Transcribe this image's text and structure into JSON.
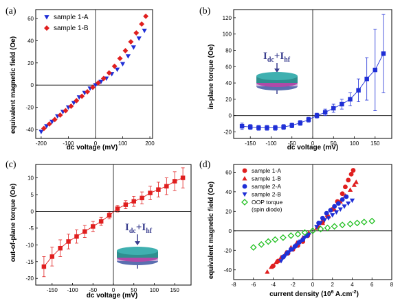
{
  "chart_data": [
    {
      "panel_label": "(a)",
      "type": "scatter",
      "xlabel": "dc voltage (mV)",
      "ylabel": "equivalent magnetic field (Oe)",
      "xlim": [
        -220,
        210
      ],
      "ylim": [
        -48,
        68
      ],
      "xticks": [
        -200,
        -100,
        0,
        100,
        200
      ],
      "yticks": [
        -40,
        -20,
        0,
        20,
        40,
        60
      ],
      "legend_position": "top-left",
      "series": [
        {
          "name": "sample 1-A",
          "color": "#1f2fd6",
          "marker": "triangle-down",
          "x": [
            -200,
            -180,
            -160,
            -140,
            -120,
            -100,
            -80,
            -60,
            -40,
            -20,
            0,
            20,
            40,
            60,
            80,
            100,
            120,
            140,
            160,
            180
          ],
          "y": [
            -42,
            -37,
            -33,
            -28,
            -24,
            -20,
            -16,
            -11,
            -7,
            -3,
            0,
            3,
            6,
            10,
            14,
            19,
            26,
            34,
            42,
            49
          ]
        },
        {
          "name": "sample 1-B",
          "color": "#e01f1f",
          "marker": "diamond",
          "x": [
            -190,
            -170,
            -150,
            -130,
            -110,
            -90,
            -70,
            -50,
            -30,
            -10,
            10,
            30,
            50,
            70,
            90,
            110,
            130,
            150,
            170,
            185
          ],
          "y": [
            -39,
            -35,
            -31,
            -27,
            -23,
            -19,
            -14,
            -10,
            -6,
            -2,
            2,
            6,
            11,
            17,
            24,
            31,
            39,
            47,
            55,
            62
          ]
        }
      ]
    },
    {
      "panel_label": "(b)",
      "type": "scatter",
      "xlabel": "dc voltage (mV)",
      "ylabel": "in-plane torque (Oe)",
      "xlim": [
        -190,
        190
      ],
      "ylim": [
        -28,
        130
      ],
      "xticks": [
        -150,
        -100,
        -50,
        0,
        50,
        100,
        150
      ],
      "yticks": [
        -20,
        0,
        20,
        40,
        60,
        80,
        100,
        120
      ],
      "inset_label": "I",
      "inset_sub1": "dc",
      "inset_plus": "+I",
      "inset_sub2": "hf",
      "series": [
        {
          "color": "#1f2fd6",
          "marker": "square",
          "x": [
            -170,
            -150,
            -130,
            -110,
            -90,
            -70,
            -50,
            -30,
            -10,
            10,
            30,
            50,
            70,
            90,
            110,
            130,
            150,
            170
          ],
          "y": [
            -13,
            -14,
            -15,
            -15,
            -15,
            -14,
            -12,
            -9,
            -5,
            0,
            4,
            9,
            14,
            20,
            31,
            45,
            56,
            76
          ],
          "err": [
            4,
            3,
            3,
            3,
            3,
            3,
            3,
            3,
            3,
            3,
            4,
            5,
            6,
            8,
            14,
            26,
            50,
            48
          ]
        }
      ]
    },
    {
      "panel_label": "(c)",
      "type": "scatter",
      "xlabel": "dc voltage (mV)",
      "ylabel": "out-of-plane torque (Oe)",
      "xlim": [
        -190,
        190
      ],
      "ylim": [
        -22,
        14
      ],
      "xticks": [
        -150,
        -100,
        -50,
        0,
        50,
        100,
        150
      ],
      "yticks": [
        -20,
        -15,
        -10,
        -5,
        0,
        5,
        10
      ],
      "inset_label": "I",
      "inset_sub1": "dc",
      "inset_plus": "+I",
      "inset_sub2": "hf",
      "series": [
        {
          "color": "#e01f1f",
          "marker": "square",
          "x": [
            -170,
            -150,
            -130,
            -110,
            -90,
            -70,
            -50,
            -30,
            -10,
            10,
            30,
            50,
            70,
            90,
            110,
            130,
            150,
            170
          ],
          "y": [
            -16.5,
            -13.5,
            -11,
            -9,
            -7.5,
            -6,
            -4.5,
            -3,
            -1.2,
            0.8,
            2,
            3,
            4,
            5.5,
            6.5,
            7.5,
            9,
            10
          ],
          "err": [
            3,
            2.8,
            2.5,
            2.2,
            2,
            1.8,
            1.5,
            1.2,
            1,
            1,
            1.2,
            1.5,
            1.8,
            2,
            2.2,
            2.5,
            2.8,
            3
          ]
        }
      ]
    },
    {
      "panel_label": "(d)",
      "type": "scatter",
      "xlabel": "current density (10",
      "xlabel_sup": "6",
      "xlabel_tail": " A.cm",
      "xlabel_sup2": "-2",
      "xlabel_end": ")",
      "ylabel": "equivalent magnetic field (Oe)",
      "xlim": [
        -8,
        8
      ],
      "ylim": [
        -50,
        68
      ],
      "xticks": [
        -8,
        -6,
        -4,
        -2,
        0,
        2,
        4,
        6,
        8
      ],
      "yticks": [
        -40,
        -20,
        0,
        20,
        40,
        60
      ],
      "legend_position": "top-left",
      "series": [
        {
          "name": "sample 1-A",
          "color": "#e01f1f",
          "marker": "circle",
          "x": [
            -4,
            -3.5,
            -3,
            -2.5,
            -2,
            -1.5,
            -1,
            -0.5,
            0.5,
            1,
            1.5,
            2,
            2.5,
            3,
            3.3,
            3.6,
            3.9,
            4.1
          ],
          "y": [
            -36,
            -31,
            -27,
            -23,
            -19,
            -15,
            -11,
            -5,
            4,
            9,
            15,
            22,
            30,
            38,
            45,
            52,
            58,
            62
          ]
        },
        {
          "name": "sample 1-B",
          "color": "#e01f1f",
          "marker": "triangle-up",
          "x": [
            -4.6,
            -4.2,
            -3.7,
            -3.2,
            -2.7,
            -2.2,
            -1.6,
            -1,
            -0.4,
            0.4,
            1,
            1.6,
            2.2,
            2.8,
            3.3,
            3.8,
            4.2,
            4.4
          ],
          "y": [
            -42,
            -37,
            -32,
            -27,
            -22,
            -17,
            -12,
            -7,
            -2,
            3,
            8,
            15,
            22,
            30,
            36,
            42,
            47,
            50
          ]
        },
        {
          "name": "sample 2-A",
          "color": "#1f2fd6",
          "marker": "circle",
          "x": [
            -3,
            -2.6,
            -2.2,
            -1.8,
            -1.4,
            -1,
            -0.6,
            0.6,
            1,
            1.4,
            1.8,
            2.2,
            2.6,
            3,
            3.4
          ],
          "y": [
            -27,
            -23,
            -19,
            -16,
            -12,
            -9,
            -5,
            8,
            13,
            18,
            21,
            25,
            28,
            32,
            35
          ]
        },
        {
          "name": "sample 2-B",
          "color": "#1f2fd6",
          "marker": "triangle-down",
          "x": [
            -3.2,
            -2.8,
            -2.4,
            -2,
            -1.6,
            -1.2,
            -0.8,
            -0.4,
            0.4,
            0.8,
            1.2,
            1.6,
            2,
            2.4,
            2.8,
            3.2,
            3.6,
            4
          ],
          "y": [
            -31,
            -26,
            -22,
            -19,
            -15,
            -11,
            -7,
            -4,
            4,
            8,
            11,
            13,
            16,
            19,
            22,
            25,
            28,
            31
          ]
        },
        {
          "name": "OOP torque",
          "color": "#22c022",
          "marker": "diamond-open",
          "x": [
            -6,
            -5.2,
            -4.5,
            -3.8,
            -3,
            -2.2,
            -1.5,
            -0.8,
            0,
            0.8,
            1.5,
            2.2,
            3,
            3.8,
            4.5,
            5.2,
            6
          ],
          "y": [
            -17,
            -14,
            -11,
            -9,
            -7,
            -5,
            -3.5,
            -1.8,
            0,
            1.8,
            3,
            4.5,
            6,
            7,
            8,
            9,
            10
          ]
        }
      ],
      "legend_note": "(spin diode)"
    }
  ]
}
